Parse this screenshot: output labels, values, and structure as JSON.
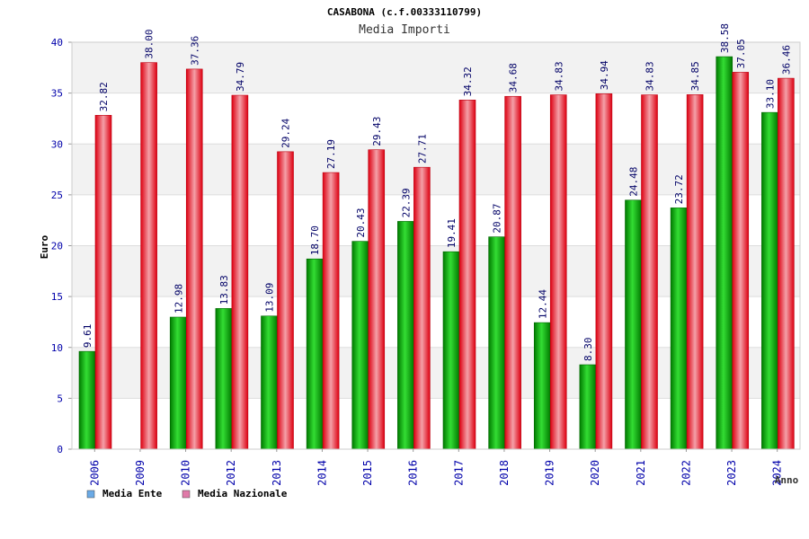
{
  "chart_data": {
    "type": "bar",
    "title": "CASABONA (c.f.00333110799)",
    "subtitle": "Media Importi",
    "ylabel": "Euro",
    "xlabel": "Anno",
    "ylim": [
      0,
      40
    ],
    "yticks": [
      0,
      5,
      10,
      15,
      20,
      25,
      30,
      35,
      40
    ],
    "ytick_labels": [
      "0",
      "5",
      "10",
      "15",
      "20",
      "25",
      "30",
      "35",
      "40"
    ],
    "categories": [
      "2006",
      "2009",
      "2010",
      "2012",
      "2013",
      "2014",
      "2015",
      "2016",
      "2017",
      "2018",
      "2019",
      "2020",
      "2021",
      "2022",
      "2023",
      "2024"
    ],
    "series": [
      {
        "name": "Media Ente",
        "color": "#00aa00",
        "legend_color": "#6aaae6",
        "values": [
          9.61,
          null,
          12.98,
          13.83,
          13.09,
          18.7,
          20.43,
          22.39,
          19.41,
          20.87,
          12.44,
          8.3,
          24.48,
          23.72,
          38.58,
          33.1
        ],
        "labels": [
          "9.61",
          "",
          "12.98",
          "13.83",
          "13.09",
          "18.70",
          "20.43",
          "22.39",
          "19.41",
          "20.87",
          "12.44",
          "8.30",
          "24.48",
          "23.72",
          "38.58",
          "33.10"
        ]
      },
      {
        "name": "Media Nazionale",
        "color": "#ee1122",
        "legend_color": "#e07aa8",
        "values": [
          32.82,
          38.0,
          37.36,
          34.79,
          29.24,
          27.19,
          29.43,
          27.71,
          34.32,
          34.68,
          34.83,
          34.94,
          34.83,
          34.85,
          37.05,
          36.46
        ],
        "labels": [
          "32.82",
          "38.00",
          "37.36",
          "34.79",
          "29.24",
          "27.19",
          "29.43",
          "27.71",
          "34.32",
          "34.68",
          "34.83",
          "34.94",
          "34.83",
          "34.85",
          "37.05",
          "36.46"
        ]
      }
    ],
    "legend_position": "bottom-left",
    "grid": true
  }
}
